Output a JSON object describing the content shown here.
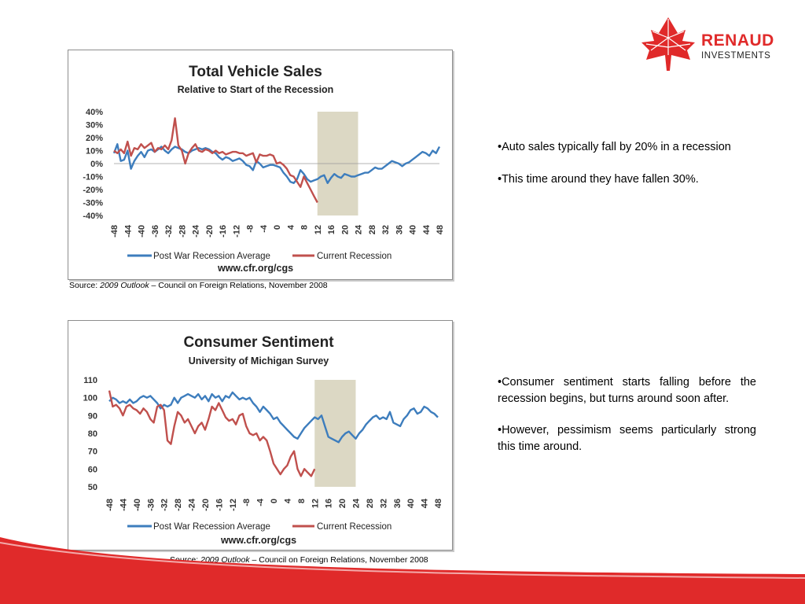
{
  "logo": {
    "name": "RENAUD",
    "sub": "INVESTMENTS",
    "color": "#e02a2a"
  },
  "charts": [
    {
      "title": "Total Vehicle Sales",
      "subtitle": "Relative to Start of the Recession",
      "url": "www.cfr.org/cgs",
      "source_prefix": "Source: ",
      "source_title": "2009 Outlook",
      "source_rest": " – Council on Foreign Relations, November 2008",
      "bullets": [
        "•Auto sales typically fall by 20% in a recession",
        "•This time around they have fallen 30%."
      ]
    },
    {
      "title": "Consumer Sentiment",
      "subtitle": "University of Michigan Survey",
      "url": "www.cfr.org/cgs",
      "source_prefix": "Source: ",
      "source_title": "2009 Outlook",
      "source_rest": " – Council on Foreign Relations, November 2008",
      "bullets": [
        "•Consumer sentiment starts falling before the recession begins, but turns around soon after.",
        "•However, pessimism seems particularly strong this time around."
      ]
    }
  ],
  "chart_data": [
    {
      "type": "line",
      "title": "Total Vehicle Sales",
      "subtitle": "Relative to Start of the Recession",
      "ylim": [
        -40,
        40
      ],
      "yticks": [
        40,
        30,
        20,
        10,
        0,
        -10,
        -20,
        -30,
        -40
      ],
      "ytick_labels": [
        "40%",
        "30%",
        "20%",
        "10%",
        "0%",
        "-10%",
        "-20%",
        "-30%",
        "-40%"
      ],
      "xlim": [
        -48,
        48
      ],
      "xticks": [
        -48,
        -44,
        -40,
        -36,
        -32,
        -28,
        -24,
        -20,
        -16,
        -12,
        -8,
        -4,
        0,
        4,
        8,
        12,
        16,
        20,
        24,
        28,
        32,
        36,
        40,
        44,
        48
      ],
      "shaded_region": [
        12,
        24
      ],
      "shade_color": "#dcd8c4",
      "zero_line": true,
      "series": [
        {
          "name": "Post War Recession Average",
          "color": "#3d7dbd",
          "x": [
            -48,
            -47,
            -46,
            -45,
            -44,
            -43,
            -42,
            -41,
            -40,
            -39,
            -38,
            -37,
            -36,
            -35,
            -34,
            -33,
            -32,
            -31,
            -30,
            -29,
            -28,
            -27,
            -26,
            -25,
            -24,
            -23,
            -22,
            -21,
            -20,
            -19,
            -18,
            -17,
            -16,
            -15,
            -14,
            -13,
            -12,
            -11,
            -10,
            -9,
            -8,
            -7,
            -6,
            -5,
            -4,
            -3,
            -2,
            -1,
            0,
            1,
            2,
            3,
            4,
            5,
            6,
            7,
            8,
            9,
            10,
            11,
            12,
            13,
            14,
            15,
            16,
            17,
            18,
            19,
            20,
            21,
            22,
            23,
            24,
            25,
            26,
            27,
            28,
            29,
            30,
            31,
            32,
            33,
            34,
            35,
            36,
            37,
            38,
            39,
            40,
            41,
            42,
            43,
            44,
            45,
            46,
            47,
            48
          ],
          "y": [
            8,
            15,
            2,
            3,
            10,
            -4,
            2,
            6,
            9,
            5,
            10,
            11,
            9,
            11,
            13,
            10,
            8,
            11,
            13,
            12,
            11,
            9,
            8,
            10,
            11,
            12,
            11,
            12,
            11,
            9,
            8,
            5,
            3,
            5,
            4,
            2,
            3,
            4,
            2,
            -1,
            -2,
            -5,
            2,
            0,
            -3,
            -2,
            -1,
            -1,
            -2,
            -3,
            -7,
            -10,
            -14,
            -15,
            -12,
            -5,
            -8,
            -12,
            -14,
            -13,
            -12,
            -10,
            -9,
            -15,
            -11,
            -8,
            -10,
            -11,
            -8,
            -9,
            -10,
            -10,
            -9,
            -8,
            -7,
            -7,
            -5,
            -3,
            -4,
            -4,
            -2,
            0,
            2,
            1,
            0,
            -2,
            0,
            1,
            3,
            5,
            7,
            9,
            8,
            6,
            10,
            8,
            13
          ]
        },
        {
          "name": "Current Recession",
          "color": "#c0504d",
          "x": [
            -48,
            -47,
            -46,
            -45,
            -44,
            -43,
            -42,
            -41,
            -40,
            -39,
            -38,
            -37,
            -36,
            -35,
            -34,
            -33,
            -32,
            -31,
            -30,
            -29,
            -28,
            -27,
            -26,
            -25,
            -24,
            -23,
            -22,
            -21,
            -20,
            -19,
            -18,
            -17,
            -16,
            -15,
            -14,
            -13,
            -12,
            -11,
            -10,
            -9,
            -8,
            -7,
            -6,
            -5,
            -4,
            -3,
            -2,
            -1,
            0,
            1,
            2,
            3,
            4,
            5,
            6,
            7,
            8,
            9,
            10,
            11,
            12
          ],
          "y": [
            10,
            8,
            11,
            8,
            17,
            6,
            12,
            11,
            15,
            12,
            14,
            16,
            9,
            12,
            11,
            14,
            11,
            18,
            35,
            14,
            10,
            0,
            8,
            12,
            15,
            10,
            9,
            11,
            10,
            8,
            10,
            8,
            9,
            7,
            8,
            9,
            9,
            8,
            8,
            6,
            7,
            8,
            1,
            7,
            6,
            6,
            7,
            6,
            0,
            1,
            -1,
            -4,
            -9,
            -10,
            -14,
            -18,
            -10,
            -15,
            -20,
            -25,
            -30
          ]
        }
      ]
    },
    {
      "type": "line",
      "title": "Consumer Sentiment",
      "subtitle": "University of Michigan Survey",
      "ylim": [
        50,
        110
      ],
      "yticks": [
        110,
        100,
        90,
        80,
        70,
        60,
        50
      ],
      "ytick_labels": [
        "110",
        "100",
        "90",
        "80",
        "70",
        "60",
        "50"
      ],
      "xlim": [
        -48,
        48
      ],
      "xticks": [
        -48,
        -44,
        -40,
        -36,
        -32,
        -28,
        -24,
        -20,
        -16,
        -12,
        -8,
        -4,
        0,
        4,
        8,
        12,
        16,
        20,
        24,
        28,
        32,
        36,
        40,
        44,
        48
      ],
      "shaded_region": [
        12,
        24
      ],
      "shade_color": "#dcd8c4",
      "zero_line": false,
      "series": [
        {
          "name": "Post War Recession Average",
          "color": "#3d7dbd",
          "x": [
            -48,
            -47,
            -46,
            -45,
            -44,
            -43,
            -42,
            -41,
            -40,
            -39,
            -38,
            -37,
            -36,
            -35,
            -34,
            -33,
            -32,
            -31,
            -30,
            -29,
            -28,
            -27,
            -26,
            -25,
            -24,
            -23,
            -22,
            -21,
            -20,
            -19,
            -18,
            -17,
            -16,
            -15,
            -14,
            -13,
            -12,
            -11,
            -10,
            -9,
            -8,
            -7,
            -6,
            -5,
            -4,
            -3,
            -2,
            -1,
            0,
            1,
            2,
            3,
            4,
            5,
            6,
            7,
            8,
            9,
            10,
            11,
            12,
            13,
            14,
            15,
            16,
            17,
            18,
            19,
            20,
            21,
            22,
            23,
            24,
            25,
            26,
            27,
            28,
            29,
            30,
            31,
            32,
            33,
            34,
            35,
            36,
            37,
            38,
            39,
            40,
            41,
            42,
            43,
            44,
            45,
            46,
            47,
            48
          ],
          "y": [
            98,
            100,
            99,
            97,
            98,
            97,
            99,
            97,
            98,
            100,
            101,
            100,
            101,
            99,
            97,
            94,
            96,
            95,
            96,
            100,
            97,
            100,
            101,
            102,
            101,
            100,
            102,
            99,
            101,
            98,
            102,
            100,
            101,
            98,
            101,
            100,
            103,
            101,
            99,
            100,
            99,
            100,
            97,
            95,
            92,
            95,
            93,
            91,
            88,
            89,
            86,
            84,
            82,
            80,
            78,
            77,
            80,
            83,
            85,
            87,
            89,
            88,
            90,
            84,
            78,
            77,
            76,
            75,
            78,
            80,
            81,
            79,
            77,
            80,
            82,
            85,
            87,
            89,
            90,
            88,
            89,
            88,
            92,
            86,
            85,
            84,
            88,
            90,
            93,
            94,
            91,
            92,
            95,
            94,
            92,
            91,
            89
          ]
        },
        {
          "name": "Current Recession",
          "color": "#c0504d",
          "x": [
            -48,
            -47,
            -46,
            -45,
            -44,
            -43,
            -42,
            -41,
            -40,
            -39,
            -38,
            -37,
            -36,
            -35,
            -34,
            -33,
            -32,
            -31,
            -30,
            -29,
            -28,
            -27,
            -26,
            -25,
            -24,
            -23,
            -22,
            -21,
            -20,
            -19,
            -18,
            -17,
            -16,
            -15,
            -14,
            -13,
            -12,
            -11,
            -10,
            -9,
            -8,
            -7,
            -6,
            -5,
            -4,
            -3,
            -2,
            -1,
            0,
            1,
            2,
            3,
            4,
            5,
            6,
            7,
            8,
            9,
            10,
            11,
            12
          ],
          "y": [
            104,
            95,
            96,
            94,
            90,
            95,
            96,
            94,
            93,
            91,
            94,
            92,
            88,
            86,
            95,
            96,
            93,
            76,
            74,
            84,
            92,
            90,
            86,
            88,
            84,
            80,
            84,
            86,
            82,
            88,
            95,
            93,
            97,
            93,
            89,
            87,
            88,
            85,
            90,
            91,
            84,
            80,
            79,
            80,
            76,
            78,
            76,
            70,
            63,
            60,
            57,
            60,
            62,
            67,
            70,
            60,
            56,
            60,
            58,
            56,
            60
          ]
        }
      ]
    }
  ]
}
